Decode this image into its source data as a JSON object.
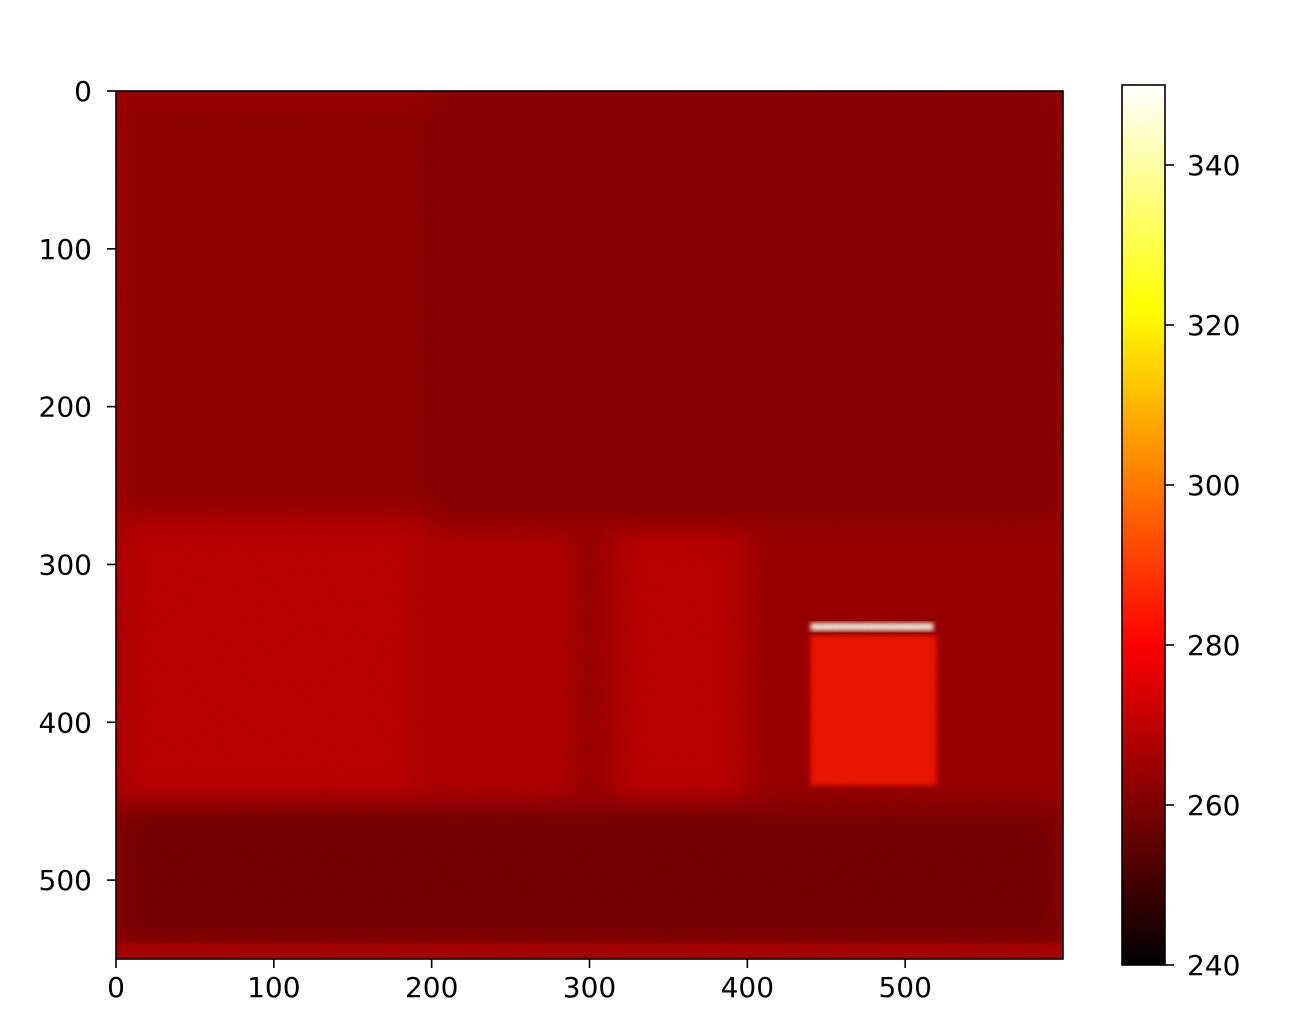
{
  "chart_data": {
    "type": "heatmap",
    "title": "",
    "xlabel": "",
    "ylabel": "",
    "colormap": "hot",
    "xlim": [
      0,
      600
    ],
    "ylim": [
      550,
      0
    ],
    "x_ticks": [
      "0",
      "100",
      "200",
      "300",
      "400",
      "500"
    ],
    "y_ticks": [
      "0",
      "100",
      "200",
      "300",
      "400",
      "500"
    ],
    "colorbar": {
      "range": [
        240,
        350
      ],
      "ticks": [
        "240",
        "260",
        "280",
        "300",
        "320",
        "340"
      ]
    },
    "background_value": 266,
    "features": [
      {
        "kind": "uniform-region",
        "x": [
          0,
          600
        ],
        "y": [
          0,
          550
        ],
        "value": 266
      },
      {
        "kind": "warm-region",
        "x": [
          0,
          200
        ],
        "y": [
          0,
          450
        ],
        "value": 272
      },
      {
        "kind": "warm-region",
        "x": [
          195,
          290
        ],
        "y": [
          280,
          450
        ],
        "value": 270
      },
      {
        "kind": "warm-region",
        "x": [
          315,
          400
        ],
        "y": [
          278,
          450
        ],
        "value": 272
      },
      {
        "kind": "cool-region",
        "x": [
          0,
          600
        ],
        "y": [
          0,
          270
        ],
        "value": 262
      },
      {
        "kind": "dark-edge",
        "x": [
          0,
          600
        ],
        "y": [
          455,
          540
        ],
        "value": 258
      },
      {
        "kind": "hot-rectangle",
        "x": [
          440,
          520
        ],
        "y": [
          345,
          440
        ],
        "value": 284
      },
      {
        "kind": "hot-line",
        "x": [
          440,
          518
        ],
        "y": [
          337,
          342
        ],
        "value": 348
      },
      {
        "kind": "bottom-strip",
        "x": [
          0,
          600
        ],
        "y": [
          540,
          550
        ],
        "value": 268
      }
    ]
  }
}
